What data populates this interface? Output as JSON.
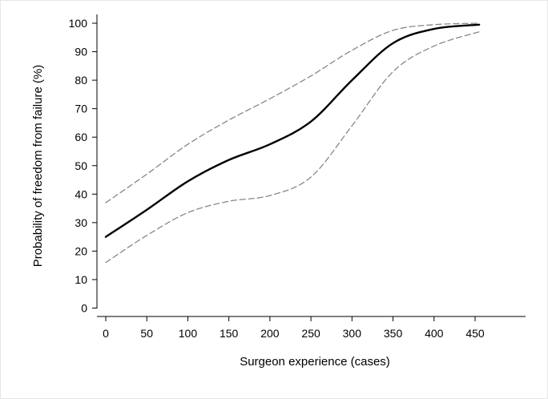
{
  "chart_data": {
    "type": "line",
    "xlabel": "Surgeon experience (cases)",
    "ylabel": "Probability of freedom from failure (%)",
    "xlim": [
      0,
      450
    ],
    "ylim": [
      0,
      100
    ],
    "xticks": [
      0,
      50,
      100,
      150,
      200,
      250,
      300,
      350,
      400,
      450
    ],
    "yticks": [
      0,
      10,
      20,
      30,
      40,
      50,
      60,
      70,
      80,
      90,
      100
    ],
    "grid": false,
    "legend": "none",
    "x": [
      0,
      50,
      100,
      150,
      200,
      250,
      300,
      350,
      400,
      455
    ],
    "series": [
      {
        "style": "solid",
        "color": "#000000",
        "values": [
          25,
          34.5,
          44.5,
          52,
          57.5,
          65.5,
          80,
          93,
          98,
          99.5
        ]
      },
      {
        "style": "dashed",
        "color": "#888888",
        "values": [
          37,
          47,
          57.5,
          66,
          73.5,
          81.5,
          90.5,
          97.5,
          99.5,
          100
        ]
      },
      {
        "style": "dashed",
        "color": "#888888",
        "values": [
          16,
          25.5,
          33.5,
          37.5,
          39.5,
          46,
          64,
          83,
          92,
          97
        ]
      }
    ]
  }
}
